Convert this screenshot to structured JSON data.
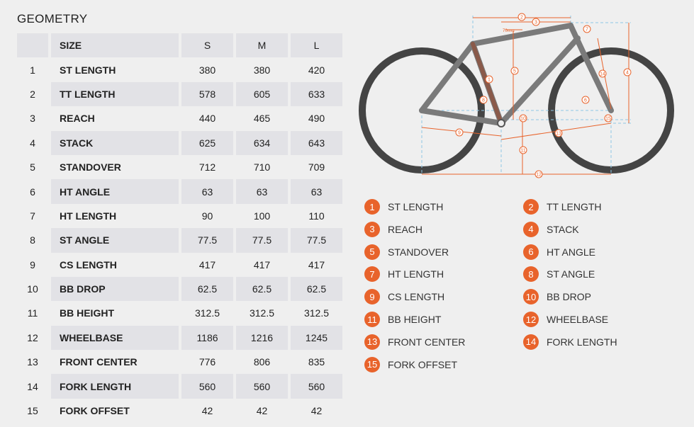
{
  "title": "GEOMETRY",
  "table": {
    "headers": [
      "SIZE",
      "S",
      "M",
      "L"
    ],
    "rows": [
      {
        "idx": "1",
        "name": "ST LENGTH",
        "s": "380",
        "m": "380",
        "l": "420"
      },
      {
        "idx": "2",
        "name": "TT LENGTH",
        "s": "578",
        "m": "605",
        "l": "633"
      },
      {
        "idx": "3",
        "name": "REACH",
        "s": "440",
        "m": "465",
        "l": "490"
      },
      {
        "idx": "4",
        "name": "STACK",
        "s": "625",
        "m": "634",
        "l": "643"
      },
      {
        "idx": "5",
        "name": "STANDOVER",
        "s": "712",
        "m": "710",
        "l": "709"
      },
      {
        "idx": "6",
        "name": "HT ANGLE",
        "s": "63",
        "m": "63",
        "l": "63"
      },
      {
        "idx": "7",
        "name": "HT LENGTH",
        "s": "90",
        "m": "100",
        "l": "110"
      },
      {
        "idx": "8",
        "name": "ST ANGLE",
        "s": "77.5",
        "m": "77.5",
        "l": "77.5"
      },
      {
        "idx": "9",
        "name": "CS LENGTH",
        "s": "417",
        "m": "417",
        "l": "417"
      },
      {
        "idx": "10",
        "name": "BB DROP",
        "s": "62.5",
        "m": "62.5",
        "l": "62.5"
      },
      {
        "idx": "11",
        "name": "BB HEIGHT",
        "s": "312.5",
        "m": "312.5",
        "l": "312.5"
      },
      {
        "idx": "12",
        "name": "WHEELBASE",
        "s": "1186",
        "m": "1216",
        "l": "1245"
      },
      {
        "idx": "13",
        "name": "FRONT CENTER",
        "s": "776",
        "m": "806",
        "l": "835"
      },
      {
        "idx": "14",
        "name": "FORK LENGTH",
        "s": "560",
        "m": "560",
        "l": "560"
      },
      {
        "idx": "15",
        "name": "FORK OFFSET",
        "s": "42",
        "m": "42",
        "l": "42"
      }
    ]
  },
  "legend": [
    {
      "num": "1",
      "label": "ST LENGTH"
    },
    {
      "num": "2",
      "label": "TT LENGTH"
    },
    {
      "num": "3",
      "label": "REACH"
    },
    {
      "num": "4",
      "label": "STACK"
    },
    {
      "num": "5",
      "label": "STANDOVER"
    },
    {
      "num": "6",
      "label": "HT ANGLE"
    },
    {
      "num": "7",
      "label": "HT LENGTH"
    },
    {
      "num": "8",
      "label": "ST ANGLE"
    },
    {
      "num": "9",
      "label": "CS LENGTH"
    },
    {
      "num": "10",
      "label": "BB DROP"
    },
    {
      "num": "11",
      "label": "BB HEIGHT"
    },
    {
      "num": "12",
      "label": "WHEELBASE"
    },
    {
      "num": "13",
      "label": "FRONT CENTER"
    },
    {
      "num": "14",
      "label": "FORK LENGTH"
    },
    {
      "num": "15",
      "label": "FORK OFFSET"
    }
  ],
  "diagram": {
    "annotation": "70mm"
  },
  "colors": {
    "accent": "#e8632b",
    "frame": "#7a7a7a",
    "tire": "#444444",
    "dim_line": "#e8632b",
    "guide_line": "#8fc7e6"
  }
}
